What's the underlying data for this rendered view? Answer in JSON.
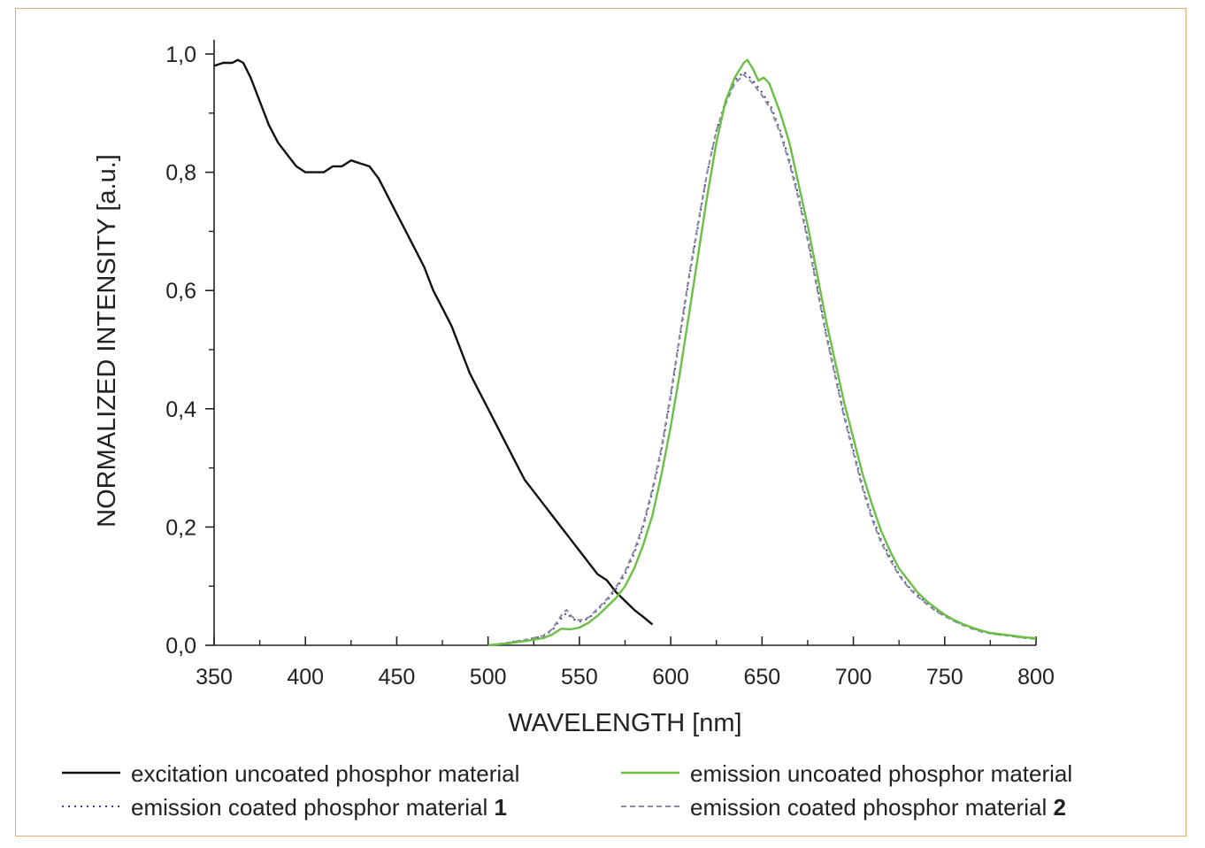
{
  "chart_data": {
    "type": "line",
    "title": "",
    "xlabel": "WAVELENGTH [nm]",
    "ylabel": "NORMALIZED INTENSITY [a.u.]",
    "xlim": [
      350,
      800
    ],
    "ylim": [
      0,
      1.0
    ],
    "xticks": [
      "350",
      "400",
      "450",
      "500",
      "550",
      "600",
      "650",
      "700",
      "750",
      "800"
    ],
    "yticks": [
      "0,0",
      "0,2",
      "0,4",
      "0,6",
      "0,8",
      "1,0"
    ],
    "grid": false,
    "legend_position": "bottom",
    "series": [
      {
        "name": "excitation uncoated phosphor material",
        "name_bold": "",
        "color": "#111111",
        "style": "solid",
        "x": [
          350,
          355,
          360,
          363,
          366,
          370,
          375,
          380,
          385,
          390,
          395,
          400,
          405,
          410,
          415,
          420,
          425,
          430,
          435,
          440,
          445,
          450,
          455,
          460,
          465,
          470,
          475,
          480,
          485,
          490,
          495,
          500,
          505,
          510,
          515,
          520,
          525,
          530,
          535,
          540,
          545,
          550,
          555,
          560,
          565,
          570,
          575,
          580,
          585,
          590
        ],
        "y": [
          0.98,
          0.985,
          0.985,
          0.99,
          0.985,
          0.96,
          0.92,
          0.88,
          0.85,
          0.83,
          0.81,
          0.8,
          0.8,
          0.8,
          0.81,
          0.81,
          0.82,
          0.815,
          0.81,
          0.79,
          0.76,
          0.73,
          0.7,
          0.67,
          0.64,
          0.6,
          0.57,
          0.54,
          0.5,
          0.46,
          0.43,
          0.4,
          0.37,
          0.34,
          0.31,
          0.28,
          0.26,
          0.24,
          0.22,
          0.2,
          0.18,
          0.16,
          0.14,
          0.12,
          0.11,
          0.09,
          0.075,
          0.06,
          0.048,
          0.035
        ]
      },
      {
        "name": "emission uncoated phosphor material",
        "name_bold": "",
        "color": "#6abf45",
        "style": "solid",
        "x": [
          500,
          510,
          520,
          530,
          535,
          540,
          545,
          550,
          555,
          560,
          565,
          570,
          575,
          580,
          585,
          590,
          595,
          600,
          605,
          610,
          615,
          620,
          625,
          630,
          635,
          640,
          642,
          645,
          648,
          651,
          654,
          660,
          665,
          670,
          675,
          680,
          685,
          690,
          695,
          700,
          705,
          710,
          715,
          720,
          725,
          730,
          735,
          740,
          745,
          750,
          755,
          760,
          765,
          770,
          775,
          780,
          785,
          790,
          795,
          800
        ],
        "y": [
          0.0,
          0.003,
          0.007,
          0.012,
          0.018,
          0.028,
          0.027,
          0.03,
          0.038,
          0.05,
          0.065,
          0.08,
          0.1,
          0.13,
          0.17,
          0.22,
          0.29,
          0.37,
          0.46,
          0.56,
          0.66,
          0.76,
          0.85,
          0.92,
          0.96,
          0.985,
          0.99,
          0.975,
          0.955,
          0.96,
          0.95,
          0.9,
          0.85,
          0.78,
          0.71,
          0.63,
          0.55,
          0.48,
          0.41,
          0.35,
          0.29,
          0.24,
          0.195,
          0.16,
          0.13,
          0.11,
          0.09,
          0.075,
          0.063,
          0.052,
          0.043,
          0.036,
          0.03,
          0.025,
          0.021,
          0.019,
          0.017,
          0.015,
          0.013,
          0.012
        ]
      },
      {
        "name": "emission coated phosphor material ",
        "name_bold": "1",
        "color": "#3c3c9a",
        "style": "dotted",
        "x": [
          500,
          510,
          520,
          530,
          535,
          540,
          543,
          546,
          550,
          555,
          560,
          565,
          570,
          575,
          580,
          585,
          590,
          595,
          600,
          605,
          610,
          615,
          620,
          625,
          630,
          635,
          640,
          645,
          650,
          655,
          660,
          665,
          670,
          675,
          680,
          685,
          690,
          695,
          700,
          705,
          710,
          715,
          720,
          725,
          730,
          735,
          740,
          745,
          750,
          755,
          760,
          765,
          770,
          775,
          780,
          785,
          790,
          795,
          800
        ],
        "y": [
          0.0,
          0.004,
          0.009,
          0.015,
          0.025,
          0.045,
          0.055,
          0.045,
          0.04,
          0.045,
          0.06,
          0.075,
          0.095,
          0.12,
          0.155,
          0.2,
          0.26,
          0.33,
          0.42,
          0.52,
          0.62,
          0.71,
          0.8,
          0.87,
          0.92,
          0.955,
          0.97,
          0.955,
          0.935,
          0.91,
          0.87,
          0.82,
          0.76,
          0.69,
          0.61,
          0.53,
          0.46,
          0.39,
          0.33,
          0.27,
          0.22,
          0.18,
          0.15,
          0.12,
          0.1,
          0.085,
          0.072,
          0.06,
          0.05,
          0.042,
          0.035,
          0.029,
          0.024,
          0.02,
          0.018,
          0.016,
          0.014,
          0.012,
          0.011
        ]
      },
      {
        "name": "emission coated phosphor material ",
        "name_bold": "2",
        "color": "#8a8aa0",
        "style": "dashed",
        "x": [
          500,
          510,
          520,
          530,
          535,
          540,
          543,
          546,
          550,
          555,
          560,
          565,
          570,
          575,
          580,
          585,
          590,
          595,
          600,
          605,
          610,
          615,
          620,
          625,
          630,
          635,
          640,
          645,
          650,
          655,
          660,
          665,
          670,
          675,
          680,
          685,
          690,
          695,
          700,
          705,
          710,
          715,
          720,
          725,
          730,
          735,
          740,
          745,
          750,
          755,
          760,
          765,
          770,
          775,
          780,
          785,
          790,
          795,
          800
        ],
        "y": [
          0.0,
          0.004,
          0.009,
          0.016,
          0.027,
          0.05,
          0.06,
          0.048,
          0.042,
          0.047,
          0.062,
          0.078,
          0.098,
          0.125,
          0.16,
          0.205,
          0.265,
          0.335,
          0.425,
          0.525,
          0.625,
          0.715,
          0.8,
          0.87,
          0.915,
          0.95,
          0.965,
          0.95,
          0.93,
          0.905,
          0.865,
          0.815,
          0.755,
          0.685,
          0.605,
          0.525,
          0.455,
          0.385,
          0.325,
          0.265,
          0.215,
          0.175,
          0.145,
          0.118,
          0.098,
          0.083,
          0.07,
          0.058,
          0.049,
          0.041,
          0.034,
          0.028,
          0.023,
          0.02,
          0.018,
          0.016,
          0.014,
          0.012,
          0.011
        ]
      }
    ]
  }
}
